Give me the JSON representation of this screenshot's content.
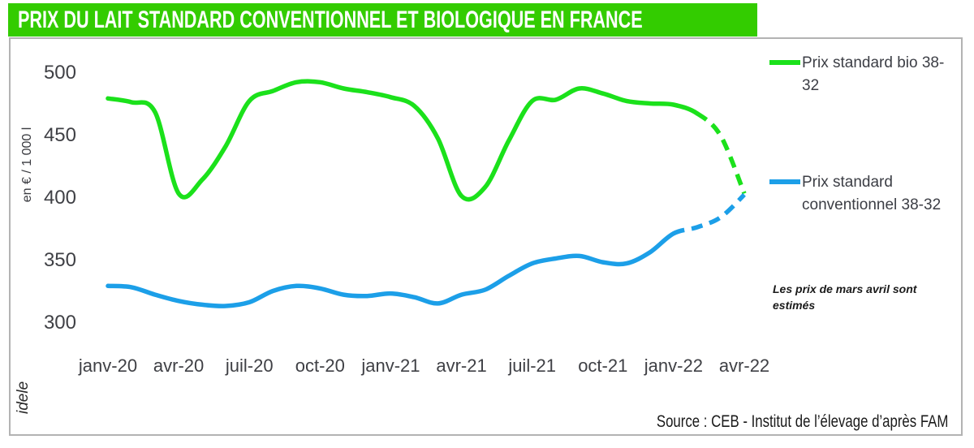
{
  "title": "PRIX DU LAIT STANDARD CONVENTIONNEL ET BIOLOGIQUE EN FRANCE",
  "watermark": "idele",
  "source": "Source : CEB  - Institut de l’élevage d’après FAM",
  "note": "Les prix de mars avril sont estimés",
  "colors": {
    "banner_green": "#33cc00",
    "bio_green": "#1be11b",
    "conv_blue": "#1c9fe8",
    "frame_border": "#b3b3b3",
    "axis_text": "#3f4045"
  },
  "legend": [
    {
      "label": "Prix standard bio 38-32",
      "series": "bio"
    },
    {
      "label": "Prix standard conventionnel 38-32",
      "series": "conventionnel"
    }
  ],
  "chart_data": {
    "type": "line",
    "title": "PRIX DU LAIT STANDARD CONVENTIONNEL ET BIOLOGIQUE EN FRANCE",
    "ylabel": "en € / 1 000 l",
    "xlabel": "",
    "ylim": [
      300,
      500
    ],
    "yticks": [
      500,
      450,
      400,
      350,
      300
    ],
    "xticklabels": [
      "janv-20",
      "avr-20",
      "juil-20",
      "oct-20",
      "janv-21",
      "avr-21",
      "juil-21",
      "oct-21",
      "janv-22",
      "avr-22"
    ],
    "x": [
      "janv-20",
      "févr-20",
      "mars-20",
      "avr-20",
      "mai-20",
      "juin-20",
      "juil-20",
      "août-20",
      "sept-20",
      "oct-20",
      "nov-20",
      "déc-20",
      "janv-21",
      "févr-21",
      "mars-21",
      "avr-21",
      "mai-21",
      "juin-21",
      "juil-21",
      "août-21",
      "sept-21",
      "oct-21",
      "nov-21",
      "déc-21",
      "janv-22",
      "févr-22",
      "mars-22",
      "avr-22"
    ],
    "grid": false,
    "legend_position": "right",
    "annotation": "Les prix de mars avril sont estimés",
    "series": [
      {
        "name": "Prix standard bio 38-32",
        "color": "#1be11b",
        "style": "solid, dashed for estimated months (mars-avr 2022)",
        "dashed_from_index": 25,
        "values": [
          479,
          476,
          468,
          403,
          414,
          441,
          477,
          485,
          492,
          492,
          487,
          484,
          480,
          473,
          447,
          401,
          408,
          445,
          477,
          478,
          487,
          483,
          477,
          475,
          474,
          467,
          449,
          403
        ]
      },
      {
        "name": "Prix standard conventionnel 38-32",
        "color": "#1c9fe8",
        "style": "solid, dashed for estimated months (févr-avr 2022)",
        "dashed_from_index": 24,
        "values": [
          329,
          328,
          322,
          317,
          314,
          313,
          316,
          325,
          329,
          327,
          322,
          321,
          323,
          320,
          315,
          322,
          326,
          337,
          347,
          351,
          353,
          348,
          347,
          356,
          371,
          376,
          384,
          402
        ]
      }
    ]
  }
}
